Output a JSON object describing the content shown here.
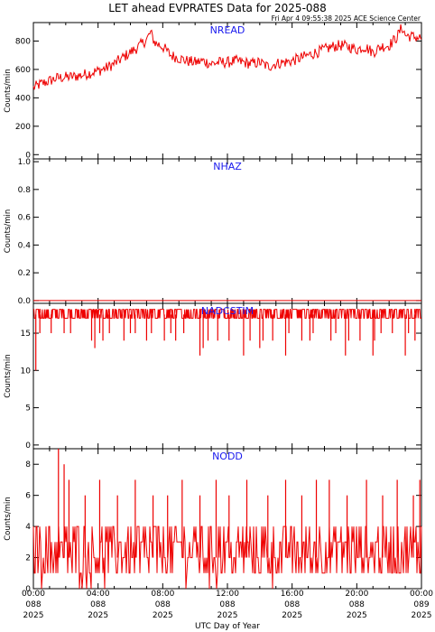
{
  "title": "LET ahead EVPRATES Data for 2025-088",
  "timestamp": "Fri Apr  4 09:55:38 2025 ACE Science Center",
  "x_axis_label": "UTC Day of Year",
  "colors": {
    "series": "#ee0000",
    "panel_label": "#1a1aee",
    "axis": "#000000"
  },
  "x_ticks": [
    {
      "hour": 0,
      "time": "00:00",
      "day": "088",
      "year": "2025"
    },
    {
      "hour": 4,
      "time": "04:00",
      "day": "088",
      "year": "2025"
    },
    {
      "hour": 8,
      "time": "08:00",
      "day": "088",
      "year": "2025"
    },
    {
      "hour": 12,
      "time": "12:00",
      "day": "088",
      "year": "2025"
    },
    {
      "hour": 16,
      "time": "16:00",
      "day": "088",
      "year": "2025"
    },
    {
      "hour": 20,
      "time": "20:00",
      "day": "088",
      "year": "2025"
    },
    {
      "hour": 24,
      "time": "00:00",
      "day": "089",
      "year": "2025"
    }
  ],
  "chart_data": [
    {
      "type": "line",
      "name": "NREAD",
      "ylabel": "Counts/min",
      "xlim": [
        0,
        24
      ],
      "ylim": [
        -30,
        930
      ],
      "yticks": [
        0,
        200,
        400,
        600,
        800
      ],
      "x": [
        0,
        0.5,
        1,
        1.5,
        2,
        2.5,
        3,
        3.5,
        4,
        4.5,
        5,
        5.5,
        6,
        6.5,
        7,
        7.25,
        7.5,
        8,
        8.5,
        9,
        9.5,
        10,
        10.5,
        11,
        11.5,
        12,
        12.5,
        13,
        13.5,
        14,
        14.5,
        15,
        15.5,
        16,
        16.5,
        17,
        17.5,
        18,
        18.5,
        19,
        19.5,
        20,
        20.5,
        21,
        21.5,
        22,
        22.5,
        22.8,
        23,
        23.5,
        24
      ],
      "y": [
        470,
        500,
        520,
        540,
        545,
        550,
        560,
        575,
        590,
        610,
        640,
        680,
        720,
        760,
        810,
        860,
        790,
        760,
        700,
        680,
        660,
        650,
        660,
        640,
        650,
        650,
        660,
        650,
        640,
        650,
        620,
        640,
        650,
        660,
        680,
        700,
        720,
        740,
        760,
        770,
        760,
        740,
        760,
        720,
        760,
        770,
        830,
        900,
        840,
        830,
        820
      ],
      "noise": 40
    },
    {
      "type": "line",
      "name": "NHAZ",
      "ylabel": "Counts/min",
      "xlim": [
        0,
        24
      ],
      "ylim": [
        -0.02,
        1.02
      ],
      "yticks": [
        0.0,
        0.2,
        0.4,
        0.6,
        0.8,
        1.0
      ],
      "x": [
        0,
        24
      ],
      "y": [
        0,
        0
      ]
    },
    {
      "type": "line",
      "name": "NADCSTIM",
      "ylabel": "Counts/min",
      "xlim": [
        0,
        24
      ],
      "ylim": [
        -0.5,
        19
      ],
      "yticks": [
        0,
        5,
        10,
        15
      ],
      "baseline": 17.5,
      "band": [
        17,
        18.2
      ],
      "dips": [
        {
          "x": 0.15,
          "y": 10
        },
        {
          "x": 0.4,
          "y": 15
        },
        {
          "x": 1.1,
          "y": 15
        },
        {
          "x": 1.9,
          "y": 15
        },
        {
          "x": 2.3,
          "y": 15
        },
        {
          "x": 3.6,
          "y": 14
        },
        {
          "x": 3.8,
          "y": 13
        },
        {
          "x": 4.1,
          "y": 15
        },
        {
          "x": 4.3,
          "y": 14
        },
        {
          "x": 4.7,
          "y": 15
        },
        {
          "x": 5.6,
          "y": 14
        },
        {
          "x": 6.0,
          "y": 15
        },
        {
          "x": 6.3,
          "y": 15
        },
        {
          "x": 7.0,
          "y": 14
        },
        {
          "x": 7.3,
          "y": 15
        },
        {
          "x": 8.1,
          "y": 14
        },
        {
          "x": 8.5,
          "y": 15
        },
        {
          "x": 8.8,
          "y": 14
        },
        {
          "x": 9.3,
          "y": 15
        },
        {
          "x": 10.3,
          "y": 12
        },
        {
          "x": 10.5,
          "y": 13
        },
        {
          "x": 10.8,
          "y": 14
        },
        {
          "x": 11.4,
          "y": 14
        },
        {
          "x": 12.1,
          "y": 14
        },
        {
          "x": 13.0,
          "y": 12
        },
        {
          "x": 13.4,
          "y": 14
        },
        {
          "x": 14.0,
          "y": 13
        },
        {
          "x": 14.2,
          "y": 14
        },
        {
          "x": 14.8,
          "y": 14
        },
        {
          "x": 15.6,
          "y": 12
        },
        {
          "x": 15.8,
          "y": 15
        },
        {
          "x": 16.6,
          "y": 14
        },
        {
          "x": 17.1,
          "y": 14
        },
        {
          "x": 17.3,
          "y": 15
        },
        {
          "x": 18.4,
          "y": 14
        },
        {
          "x": 18.7,
          "y": 15
        },
        {
          "x": 19.3,
          "y": 12
        },
        {
          "x": 19.5,
          "y": 14
        },
        {
          "x": 20.2,
          "y": 14
        },
        {
          "x": 21.0,
          "y": 12
        },
        {
          "x": 21.1,
          "y": 14
        },
        {
          "x": 21.5,
          "y": 15
        },
        {
          "x": 22.2,
          "y": 15
        },
        {
          "x": 23.0,
          "y": 12
        },
        {
          "x": 23.2,
          "y": 15
        },
        {
          "x": 23.6,
          "y": 14
        }
      ]
    },
    {
      "type": "line",
      "name": "NODD",
      "ylabel": "Counts/min",
      "xlim": [
        0,
        24
      ],
      "ylim": [
        0,
        9
      ],
      "yticks": [
        0,
        2,
        4,
        6,
        8
      ],
      "typical_range": [
        1,
        4
      ],
      "max": 9,
      "peaks": [
        {
          "x": 1.55,
          "y": 9
        },
        {
          "x": 1.9,
          "y": 8
        },
        {
          "x": 2.2,
          "y": 7
        },
        {
          "x": 3.2,
          "y": 6
        },
        {
          "x": 4.1,
          "y": 7
        },
        {
          "x": 5.2,
          "y": 6
        },
        {
          "x": 6.3,
          "y": 7
        },
        {
          "x": 7.4,
          "y": 6
        },
        {
          "x": 8.3,
          "y": 6
        },
        {
          "x": 9.2,
          "y": 7
        },
        {
          "x": 10.3,
          "y": 6
        },
        {
          "x": 11.3,
          "y": 7
        },
        {
          "x": 12.1,
          "y": 6
        },
        {
          "x": 13.2,
          "y": 7
        },
        {
          "x": 14.5,
          "y": 6
        },
        {
          "x": 15.6,
          "y": 7
        },
        {
          "x": 16.6,
          "y": 6
        },
        {
          "x": 17.5,
          "y": 7
        },
        {
          "x": 18.3,
          "y": 7
        },
        {
          "x": 19.4,
          "y": 6
        },
        {
          "x": 20.6,
          "y": 7
        },
        {
          "x": 21.6,
          "y": 6
        },
        {
          "x": 22.5,
          "y": 7
        },
        {
          "x": 23.5,
          "y": 6
        },
        {
          "x": 23.9,
          "y": 7
        }
      ]
    }
  ]
}
